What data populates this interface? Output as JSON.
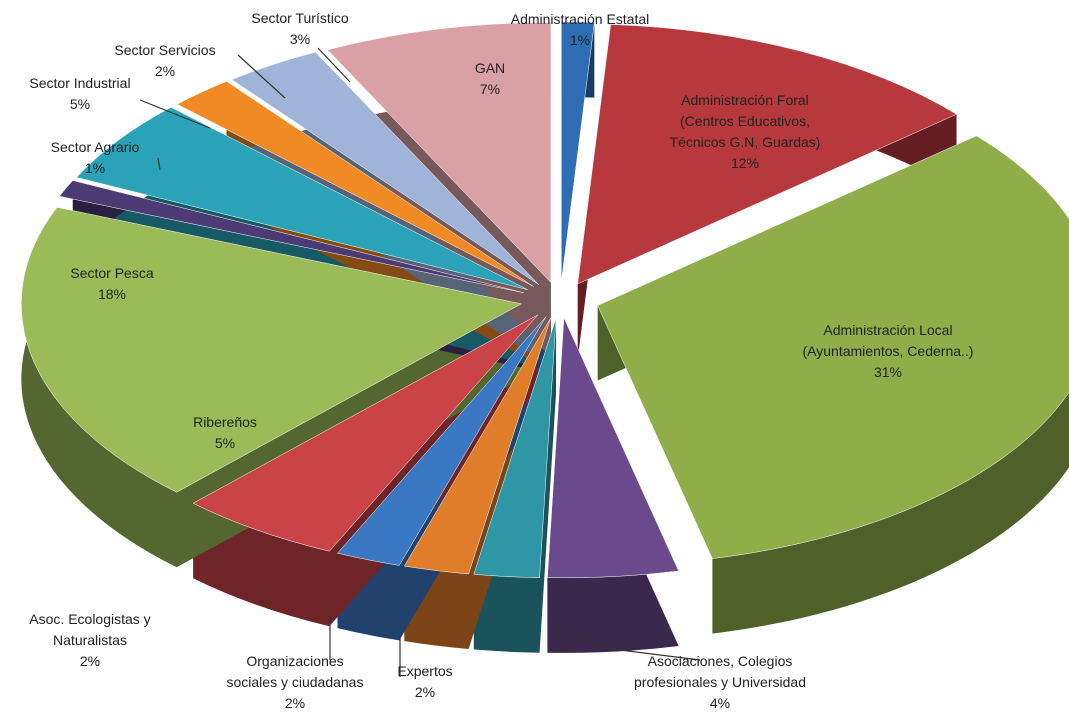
{
  "chart_data": {
    "type": "pie",
    "exploded": true,
    "three_d": true,
    "slices": [
      {
        "label": [
          "Administración Estatal"
        ],
        "pct_label": "1%",
        "value": 1,
        "color": "#2e6db4"
      },
      {
        "label": [
          "Administración Foral",
          "(Centros Educativos,",
          "Técnicos G.N, Guardas)"
        ],
        "pct_label": "12%",
        "value": 12,
        "color": "#b7393d"
      },
      {
        "label": [
          "Administración Local",
          "(Ayuntamientos, Cederna..)"
        ],
        "pct_label": "31%",
        "value": 31,
        "color": "#8fae4a"
      },
      {
        "label": [
          "Asociaciones, Colegios",
          "profesionales y Universidad"
        ],
        "pct_label": "4%",
        "value": 4,
        "color": "#6a4a8c"
      },
      {
        "label": [
          "Expertos"
        ],
        "pct_label": "2%",
        "value": 2,
        "color": "#2f96a6"
      },
      {
        "label": [
          "Organizaciones",
          "sociales y ciudadanas"
        ],
        "pct_label": "2%",
        "value": 2,
        "color": "#e07d2a"
      },
      {
        "label": [
          "Asoc. Ecologistas y",
          "Naturalistas"
        ],
        "pct_label": "2%",
        "value": 2,
        "color": "#3b78c4"
      },
      {
        "label": [
          "Ribereños"
        ],
        "pct_label": "5%",
        "value": 5,
        "color": "#c94347"
      },
      {
        "label": [
          "Sector Pesca"
        ],
        "pct_label": "18%",
        "value": 18,
        "color": "#9bbb59"
      },
      {
        "label": [
          "Sector Agrario"
        ],
        "pct_label": "1%",
        "value": 1,
        "color": "#4b3a73"
      },
      {
        "label": [
          "Sector Industrial"
        ],
        "pct_label": "5%",
        "value": 5,
        "color": "#2aa3b8"
      },
      {
        "label": [
          "Sector Servicios"
        ],
        "pct_label": "2%",
        "value": 2,
        "color": "#f08a24"
      },
      {
        "label": [
          "Sector Turístico"
        ],
        "pct_label": "3%",
        "value": 3,
        "color": "#9fb4d8"
      },
      {
        "label": [
          "GAN"
        ],
        "pct_label": "7%",
        "value": 7,
        "color": "#d9a0a6"
      }
    ]
  }
}
